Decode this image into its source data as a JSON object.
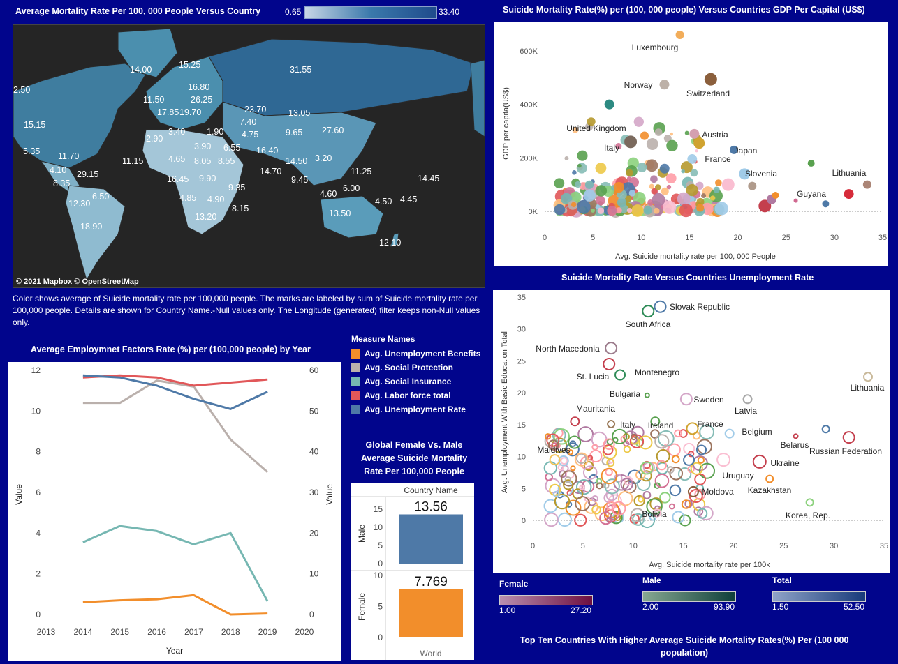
{
  "map": {
    "title": "Average Mortality Rate Per 100, 000 People Versus Country",
    "legend_min": "0.65",
    "legend_max": "33.40",
    "attribution": "© 2021 Mapbox  © OpenStreetMap",
    "labels": [
      "2.50",
      "14.00",
      "15.25",
      "31.55",
      "16.80",
      "11.50",
      "26.25",
      "17.85",
      "19.70",
      "15.15",
      "23.70",
      "13.05",
      "3.40",
      "1.90",
      "7.40",
      "4.75",
      "9.65",
      "27.60",
      "2.90",
      "5.35",
      "11.70",
      "3.90",
      "6.55",
      "16.40",
      "11.15",
      "4.65",
      "8.05",
      "8.55",
      "14.50",
      "3.20",
      "4.10",
      "29.15",
      "14.70",
      "11.25",
      "8.35",
      "16.45",
      "9.90",
      "9.45",
      "9.35",
      "6.00",
      "14.45",
      "6.50",
      "4.60",
      "12.30",
      "4.85",
      "4.90",
      "4.50",
      "4.45",
      "8.15",
      "18.90",
      "13.20",
      "13.50",
      "12.10"
    ]
  },
  "map_note": "Color shows average of Suicide mortality rate per 100,000 people. The marks are labeled by sum of Suicide mortality rate per  100,000  people.  Details are shown for Country Name.-Null values only. The Longitude (generated) filter keeps non-Null values only.",
  "scatter1": {
    "title": "Suicide Mortality Rate(%) per (100, 000 people) Versus Countries  GDP Per Capital (US$)"
  },
  "scatter2": {
    "title": "Suicide Mortality Rate Versus Countries Unemployment Rate"
  },
  "line": {
    "title": "Average Employmnet Factors Rate (%) per (100,000 people) by Year",
    "legend_title": "Measure Names"
  },
  "bar": {
    "title_line1": "Global Female Vs. Male",
    "title_line2": "Average  Suicide Mortality",
    "title_line3": "Rate Per  100,000  People"
  },
  "gender_legends": [
    {
      "title": "Female",
      "min": "1.00",
      "max": "27.20",
      "color_from": "#b98fb0",
      "color_to": "#6e0f40"
    },
    {
      "title": "Male",
      "min": "2.00",
      "max": "93.90",
      "color_from": "#86a892",
      "color_to": "#0e3f3a"
    },
    {
      "title": "Total",
      "min": "1.50",
      "max": "52.50",
      "color_from": "#8fa3c8",
      "color_to": "#173a7a"
    }
  ],
  "top_ten_title": "Top Ten Countries With Higher Average Suicide Mortality Rates(%) Per (100 000 population)",
  "chart_data": [
    {
      "type": "scatter",
      "title": "Suicide Mortality Rate(%) per (100, 000 people) Versus Countries  GDP Per Capital (US$)",
      "xlabel": "Avg. Suicide mortality rate per 100, 000 People",
      "ylabel": "GDP per capita(US$)",
      "xlim": [
        0,
        35
      ],
      "ylim": [
        0,
        660000
      ],
      "xticks": [
        "0",
        "5",
        "10",
        "15",
        "20",
        "25",
        "30",
        "35"
      ],
      "yticks": [
        {
          "v": 0,
          "t": "0K"
        },
        {
          "v": 200000,
          "t": "200K"
        },
        {
          "v": 400000,
          "t": "400K"
        },
        {
          "v": 600000,
          "t": "600K"
        }
      ],
      "labeled_points": [
        {
          "name": "Luxembourg",
          "x": 14.0,
          "y": 660000,
          "color": "#f2ad5a",
          "r": 6
        },
        {
          "name": "Norway",
          "x": 12.4,
          "y": 474000,
          "color": "#bdb1a8",
          "r": 7
        },
        {
          "name": "Switzerland",
          "x": 17.2,
          "y": 494000,
          "color": "#8b5f3c",
          "r": 9
        },
        {
          "name": "United Kingdom",
          "x": 6.7,
          "y": 400000,
          "color": "#2d8a82",
          "r": 7
        },
        {
          "name": "Austria",
          "x": 15.5,
          "y": 290000,
          "color": "#d4a0b0",
          "r": 7
        },
        {
          "name": "Italy",
          "x": 8.9,
          "y": 260000,
          "color": "#7b6a5e",
          "r": 9
        },
        {
          "name": "Japan",
          "x": 19.6,
          "y": 230000,
          "color": "#4e79a7",
          "r": 6
        },
        {
          "name": "France",
          "x": 16.0,
          "y": 255000,
          "color": "#d0a330",
          "r": 8
        },
        {
          "name": "Slovenia",
          "x": 20.7,
          "y": 140000,
          "color": "#a0cbe8",
          "r": 8
        },
        {
          "name": "Lithuania",
          "x": 33.4,
          "y": 100000,
          "color": "#ab8576",
          "r": 6
        },
        {
          "name": "Guyana",
          "x": 29.1,
          "y": 28000,
          "color": "#4e79a7",
          "r": 5
        },
        {
          "name": "",
          "x": 31.5,
          "y": 65000,
          "color": "#d62b3a",
          "r": 7
        },
        {
          "name": "",
          "x": 27.6,
          "y": 180000,
          "color": "#59a14f",
          "r": 5
        },
        {
          "name": "",
          "x": 22.8,
          "y": 20000,
          "color": "#c43f4d",
          "r": 9
        },
        {
          "name": "",
          "x": 23.5,
          "y": 45000,
          "color": "#b07aa1",
          "r": 7
        },
        {
          "name": "",
          "x": 23.9,
          "y": 60000,
          "color": "#f28e2b",
          "r": 5
        },
        {
          "name": "",
          "x": 21.5,
          "y": 95000,
          "color": "#b09b8c",
          "r": 6
        },
        {
          "name": "",
          "x": 19.0,
          "y": 100000,
          "color": "#fabfd2",
          "r": 9
        },
        {
          "name": "",
          "x": 26.0,
          "y": 40000,
          "color": "#d06890",
          "r": 3
        }
      ]
    },
    {
      "type": "scatter",
      "title": "Suicide Mortality Rate Versus Countries Unemployment Rate",
      "xlabel": "Avg. Suicide mortality rate per 100k",
      "ylabel": "Avg. Unemployment With Basic Education Total",
      "xlim": [
        0,
        35
      ],
      "ylim": [
        0,
        35
      ],
      "xticks": [
        "0",
        "5",
        "10",
        "15",
        "20",
        "25",
        "30",
        "35"
      ],
      "yticks": [
        "0",
        "5",
        "10",
        "15",
        "20",
        "25",
        "30",
        "35"
      ],
      "labeled_points": [
        {
          "name": "Slovak Republic",
          "x": 12.7,
          "y": 33.5,
          "color": "#4e79a7",
          "r": 8
        },
        {
          "name": "South Africa",
          "x": 11.5,
          "y": 32.8,
          "color": "#2e8b57",
          "r": 8
        },
        {
          "name": "North Macedonia",
          "x": 7.8,
          "y": 27.0,
          "color": "#9c7c8c",
          "r": 8
        },
        {
          "name": "St. Lucia",
          "x": 7.6,
          "y": 24.5,
          "color": "#c43f4d",
          "r": 8
        },
        {
          "name": "Montenegro",
          "x": 8.7,
          "y": 22.8,
          "color": "#2e8b57",
          "r": 7
        },
        {
          "name": "Lithuania",
          "x": 33.4,
          "y": 22.5,
          "color": "#c9b99a",
          "r": 6
        },
        {
          "name": "Bulgaria",
          "x": 11.4,
          "y": 19.6,
          "color": "#59a14f",
          "r": 3
        },
        {
          "name": "Sweden",
          "x": 15.3,
          "y": 19.0,
          "color": "#d4a6c8",
          "r": 8
        },
        {
          "name": "Latvia",
          "x": 21.4,
          "y": 19.0,
          "color": "#a8a8a8",
          "r": 6
        },
        {
          "name": "Mauritania",
          "x": 4.2,
          "y": 15.5,
          "color": "#c43f4d",
          "r": 6
        },
        {
          "name": "Italy",
          "x": 7.8,
          "y": 15.1,
          "color": "#9c7c5c",
          "r": 5
        },
        {
          "name": "Ireland",
          "x": 12.2,
          "y": 15.5,
          "color": "#59a14f",
          "r": 6
        },
        {
          "name": "France",
          "x": 15.9,
          "y": 14.4,
          "color": "#d0a330",
          "r": 8
        },
        {
          "name": "Belgium",
          "x": 19.6,
          "y": 13.6,
          "color": "#a0cbe8",
          "r": 6
        },
        {
          "name": "Belarus",
          "x": 26.2,
          "y": 13.2,
          "color": "#c43f4d",
          "r": 3
        },
        {
          "name": "Russian Federation",
          "x": 31.5,
          "y": 13.0,
          "color": "#c43f4d",
          "r": 8
        },
        {
          "name": "",
          "x": 29.2,
          "y": 14.3,
          "color": "#4e79a7",
          "r": 5
        },
        {
          "name": "Maldives",
          "x": 2.2,
          "y": 9.5,
          "color": "#f2c45a",
          "r": 7
        },
        {
          "name": "Ukraine",
          "x": 22.6,
          "y": 9.2,
          "color": "#c43f4d",
          "r": 9
        },
        {
          "name": "Uruguay",
          "x": 19.0,
          "y": 9.5,
          "color": "#fabfd2",
          "r": 9
        },
        {
          "name": "Kazakhstan",
          "x": 23.6,
          "y": 6.5,
          "color": "#f28e2b",
          "r": 5
        },
        {
          "name": "Moldova",
          "x": 16.0,
          "y": 4.5,
          "color": "#8b5f3c",
          "r": 7
        },
        {
          "name": "Bolivia",
          "x": 14.5,
          "y": 0.5,
          "color": "#a0cbe8",
          "r": 8
        },
        {
          "name": "Korea, Rep.",
          "x": 27.6,
          "y": 2.8,
          "color": "#8cd17d",
          "r": 5
        }
      ]
    },
    {
      "type": "line",
      "title": "Average Employmnet Factors Rate (%) per (100,000 people) by Year",
      "xlabel": "Year",
      "ylabel": "Value",
      "y2label": "Value",
      "x": [
        2014,
        2015,
        2016,
        2017,
        2018,
        2019
      ],
      "xticks": [
        "2013",
        "2014",
        "2015",
        "2016",
        "2017",
        "2018",
        "2019",
        "2020"
      ],
      "ylim": [
        0,
        12
      ],
      "y2lim": [
        0,
        60
      ],
      "yticks": [
        "0",
        "2",
        "4",
        "6",
        "8",
        "10",
        "12"
      ],
      "y2ticks": [
        "0",
        "10",
        "20",
        "30",
        "40",
        "50",
        "60"
      ],
      "series": [
        {
          "name": "Avg. Unemployment Benefits",
          "axis": "left",
          "color": "#f28e2b",
          "values": [
            0.6,
            0.7,
            0.75,
            0.95,
            0.0,
            0.05
          ]
        },
        {
          "name": "Avg. Social Protection",
          "axis": "right",
          "color": "#bab0ac",
          "values": [
            52.0,
            52.0,
            57.5,
            56.0,
            43.0,
            35.0
          ]
        },
        {
          "name": "Avg. Social Insurance",
          "axis": "left",
          "color": "#76b7b2",
          "values": [
            3.55,
            4.35,
            4.1,
            3.45,
            4.0,
            0.65
          ]
        },
        {
          "name": "Avg. Labor force total",
          "axis": "left",
          "color": "#e15759",
          "values": [
            11.65,
            11.75,
            11.65,
            11.25,
            11.4,
            11.55
          ]
        },
        {
          "name": "Avg. Unemployment Rate",
          "axis": "left",
          "color": "#4e79a7",
          "values": [
            11.75,
            11.65,
            11.25,
            10.6,
            10.1,
            10.95
          ]
        }
      ]
    },
    {
      "type": "bar",
      "title": "Global Female Vs. Male Average  Suicide Mortality Rate Per  100,000  People",
      "header": "Country Name",
      "footer": "World",
      "categories": [
        "Male",
        "Female"
      ],
      "values": [
        13.56,
        7.769
      ],
      "labels": [
        "13.56",
        "7.769"
      ],
      "colors": [
        "#4e79a7",
        "#f28e2b"
      ],
      "ylim": [
        0,
        15
      ],
      "male_ticks": [
        "15",
        "10",
        "5",
        "0"
      ],
      "female_ticks": [
        "10",
        "5",
        "0"
      ]
    }
  ]
}
